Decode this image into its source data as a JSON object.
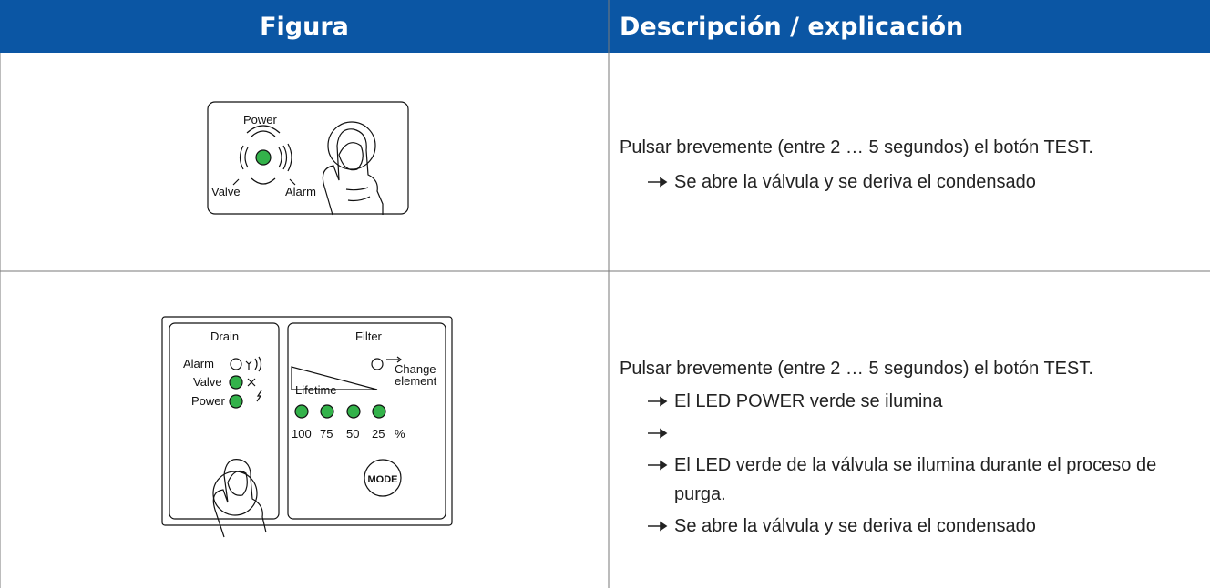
{
  "header": {
    "figure": "Figura",
    "description": "Descripción / explicación"
  },
  "rows": [
    {
      "figure": {
        "power": "Power",
        "valve": "Valve",
        "alarm": "Alarm"
      },
      "text": "Pulsar brevemente (entre 2 … 5 segundos) el botón TEST.",
      "items": [
        "Se abre la válvula y se deriva el condensado"
      ]
    },
    {
      "figure": {
        "drain": "Drain",
        "alarm": "Alarm",
        "valve": "Valve",
        "power": "Power",
        "filter": "Filter",
        "change": "Change",
        "element": "element",
        "lifetime": "Lifetime",
        "percent_labels": [
          "100",
          "75",
          "50",
          "25",
          "%"
        ],
        "mode": "MODE"
      },
      "text": "Pulsar brevemente (entre 2 … 5 segundos) el botón TEST.",
      "items": [
        "El LED POWER verde se ilumina",
        "El LED verde de la válvula se ilumina durante el proceso de purga.",
        "Se abre la válvula y se deriva el condensado"
      ]
    }
  ]
}
